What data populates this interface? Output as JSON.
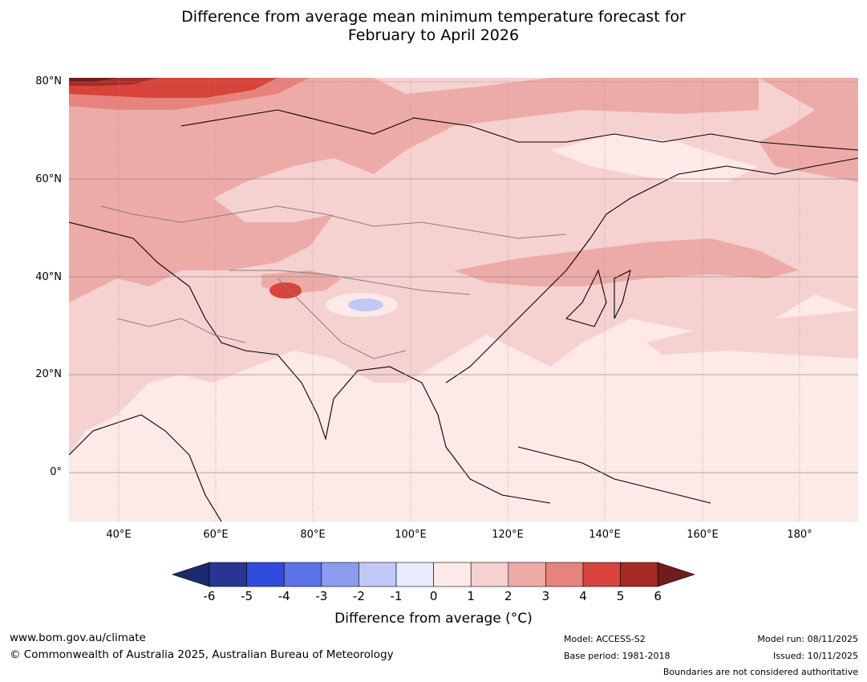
{
  "title": {
    "line1": "Difference from average mean minimum temperature forecast for",
    "line2": "February to April 2026"
  },
  "map": {
    "region": "Asia",
    "lat_labels": [
      "80°N",
      "60°N",
      "40°N",
      "20°N",
      "0°"
    ],
    "lon_labels": [
      "40°E",
      "60°E",
      "80°E",
      "100°E",
      "120°E",
      "140°E",
      "160°E",
      "180°"
    ],
    "lat_range": [
      -10,
      81
    ],
    "lon_range": [
      30,
      192
    ]
  },
  "colorbar": {
    "ticks": [
      "-6",
      "-5",
      "-4",
      "-3",
      "-2",
      "-1",
      "0",
      "1",
      "2",
      "3",
      "4",
      "5",
      "6"
    ],
    "colors": [
      "#283593",
      "#2f4cde",
      "#5b72e8",
      "#8a9cee",
      "#c0c9f5",
      "#e8ebfb",
      "#fce9e8",
      "#f5d2d0",
      "#edaba7",
      "#e6837d",
      "#d8443a",
      "#a62a23"
    ],
    "low_extend_color": "#1a2a6e",
    "high_extend_color": "#6e1d18",
    "label": "Difference from average (°C)"
  },
  "footer": {
    "website": "www.bom.gov.au/climate",
    "copyright": "© Commonwealth of Australia 2025, Australian Bureau of Meteorology",
    "model": "Model: ACCESS-S2",
    "base_period": "Base period: 1981-2018",
    "model_run": "Model run: 08/11/2025",
    "issued": "Issued: 10/11/2025",
    "disclaimer": "Boundaries are not considered authoritative"
  }
}
